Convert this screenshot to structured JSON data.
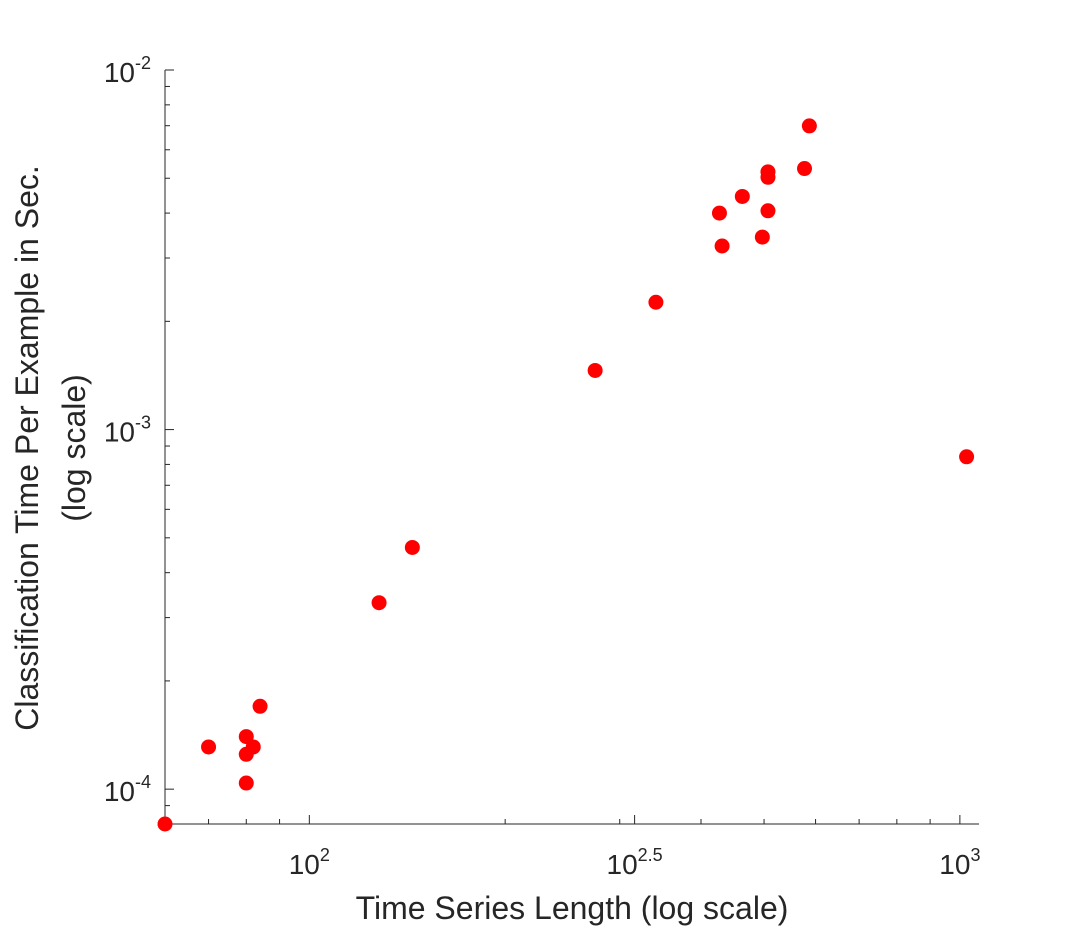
{
  "chart_data": {
    "type": "scatter",
    "xscale": "log",
    "yscale": "log",
    "xlim": [
      60,
      1070
    ],
    "ylim": [
      8e-05,
      0.01
    ],
    "xlabel": "Time Series Length (log scale)",
    "ylabel_lines": [
      "Classification Time Per Example in Sec.",
      "(log scale)"
    ],
    "x_ticks": [
      {
        "value": 100,
        "base": "10",
        "exp": "2"
      },
      {
        "value": 316.23,
        "base": "10",
        "exp": "2.5"
      },
      {
        "value": 1000,
        "base": "10",
        "exp": "3"
      }
    ],
    "y_ticks": [
      {
        "value": 0.0001,
        "base": "10",
        "exp": "-4"
      },
      {
        "value": 0.001,
        "base": "10",
        "exp": "-3"
      },
      {
        "value": 0.01,
        "base": "10",
        "exp": "-2"
      }
    ],
    "grid": false,
    "marker_color": "#ff0000",
    "points": [
      {
        "x": 60,
        "y": 8e-05
      },
      {
        "x": 70,
        "y": 0.000131
      },
      {
        "x": 80,
        "y": 0.000104
      },
      {
        "x": 80,
        "y": 0.000125
      },
      {
        "x": 80,
        "y": 0.00014
      },
      {
        "x": 82,
        "y": 0.000131
      },
      {
        "x": 84,
        "y": 0.00017
      },
      {
        "x": 128,
        "y": 0.00033
      },
      {
        "x": 144,
        "y": 0.00047
      },
      {
        "x": 275,
        "y": 0.00146
      },
      {
        "x": 341,
        "y": 0.00226
      },
      {
        "x": 427,
        "y": 0.004
      },
      {
        "x": 431,
        "y": 0.00324
      },
      {
        "x": 463,
        "y": 0.00445
      },
      {
        "x": 497,
        "y": 0.00343
      },
      {
        "x": 507,
        "y": 0.00406
      },
      {
        "x": 507,
        "y": 0.00503
      },
      {
        "x": 507,
        "y": 0.00521
      },
      {
        "x": 577,
        "y": 0.00532
      },
      {
        "x": 587,
        "y": 0.00699
      },
      {
        "x": 1024,
        "y": 0.00084
      }
    ]
  }
}
